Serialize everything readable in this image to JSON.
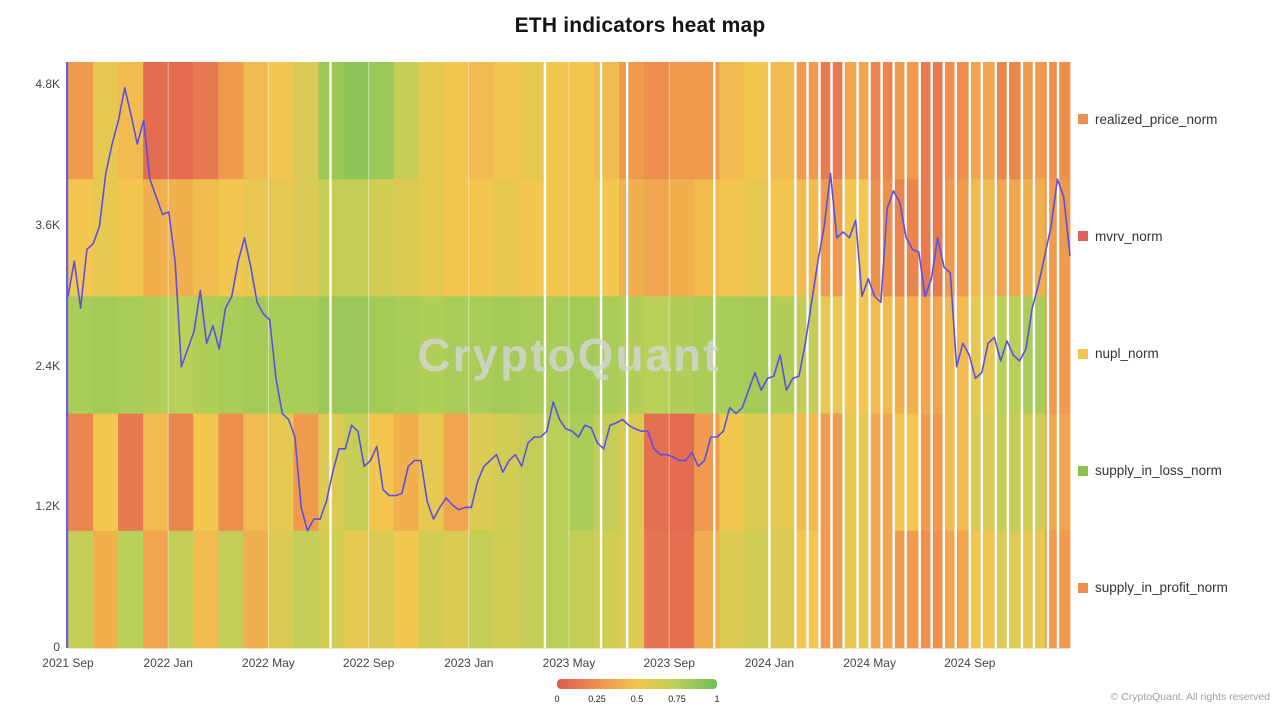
{
  "chart_data": {
    "type": "heatmap",
    "title": "ETH indicators heat map",
    "start_month": "2021-09",
    "end_month": "2024-12",
    "categories": [
      "2021-09",
      "2021-10",
      "2021-11",
      "2021-12",
      "2022-01",
      "2022-02",
      "2022-03",
      "2022-04",
      "2022-05",
      "2022-06",
      "2022-07",
      "2022-08",
      "2022-09",
      "2022-10",
      "2022-11",
      "2022-12",
      "2023-01",
      "2023-02",
      "2023-03",
      "2023-04",
      "2023-05",
      "2023-06",
      "2023-07",
      "2023-08",
      "2023-09",
      "2023-10",
      "2023-11",
      "2023-12",
      "2024-01",
      "2024-02",
      "2024-03",
      "2024-04",
      "2024-05",
      "2024-06",
      "2024-07",
      "2024-08",
      "2024-09",
      "2024-10",
      "2024-11",
      "2024-12"
    ],
    "y_axis": {
      "tick_labels": [
        "0",
        "1.2K",
        "2.4K",
        "3.6K",
        "4.8K"
      ],
      "tick_values": [
        0,
        1.2,
        2.4,
        3.6,
        4.8
      ],
      "max": 5.0
    },
    "x_axis": {
      "tick_labels": [
        "2021 Sep",
        "2022 Jan",
        "2022 May",
        "2022 Sep",
        "2023 Jan",
        "2023 May",
        "2023 Sep",
        "2024 Jan",
        "2024 May",
        "2024 Sep"
      ],
      "tick_month_index": [
        0,
        4,
        8,
        12,
        16,
        20,
        24,
        28,
        32,
        36
      ]
    },
    "bands": [
      {
        "name": "realized_price_norm",
        "values": [
          0.3,
          0.55,
          0.45,
          0.08,
          0.08,
          0.15,
          0.3,
          0.45,
          0.5,
          0.6,
          0.85,
          0.9,
          0.85,
          0.7,
          0.55,
          0.5,
          0.45,
          0.5,
          0.55,
          0.5,
          0.5,
          0.45,
          0.3,
          0.25,
          0.3,
          0.3,
          0.45,
          0.5,
          0.45,
          0.3,
          0.15,
          0.35,
          0.2,
          0.3,
          0.15,
          0.25,
          0.35,
          0.2,
          0.3,
          0.25
        ]
      },
      {
        "name": "mvrv_norm",
        "values": [
          0.5,
          0.55,
          0.5,
          0.4,
          0.4,
          0.45,
          0.5,
          0.55,
          0.55,
          0.6,
          0.7,
          0.7,
          0.65,
          0.6,
          0.55,
          0.5,
          0.5,
          0.55,
          0.5,
          0.5,
          0.5,
          0.5,
          0.4,
          0.35,
          0.4,
          0.45,
          0.5,
          0.55,
          0.5,
          0.45,
          0.3,
          0.5,
          0.25,
          0.2,
          0.15,
          0.3,
          0.45,
          0.35,
          0.4,
          0.3
        ]
      },
      {
        "name": "nupl_norm",
        "values": [
          0.8,
          0.82,
          0.8,
          0.78,
          0.75,
          0.78,
          0.8,
          0.82,
          0.8,
          0.8,
          0.85,
          0.85,
          0.82,
          0.8,
          0.78,
          0.8,
          0.8,
          0.82,
          0.8,
          0.8,
          0.82,
          0.8,
          0.78,
          0.75,
          0.78,
          0.8,
          0.8,
          0.82,
          0.78,
          0.7,
          0.55,
          0.5,
          0.45,
          0.4,
          0.35,
          0.45,
          0.55,
          0.75,
          0.8,
          0.3
        ]
      },
      {
        "name": "supply_in_loss_norm",
        "values": [
          0.2,
          0.5,
          0.15,
          0.45,
          0.2,
          0.5,
          0.25,
          0.45,
          0.55,
          0.3,
          0.6,
          0.7,
          0.5,
          0.4,
          0.55,
          0.35,
          0.6,
          0.65,
          0.7,
          0.75,
          0.8,
          0.7,
          0.6,
          0.1,
          0.08,
          0.3,
          0.5,
          0.6,
          0.55,
          0.45,
          0.3,
          0.55,
          0.35,
          0.5,
          0.3,
          0.45,
          0.6,
          0.7,
          0.65,
          0.35
        ]
      },
      {
        "name": "supply_in_profit_norm",
        "values": [
          0.7,
          0.4,
          0.75,
          0.35,
          0.7,
          0.45,
          0.7,
          0.4,
          0.6,
          0.7,
          0.65,
          0.55,
          0.6,
          0.5,
          0.65,
          0.6,
          0.7,
          0.65,
          0.7,
          0.75,
          0.7,
          0.65,
          0.6,
          0.12,
          0.1,
          0.4,
          0.6,
          0.65,
          0.6,
          0.5,
          0.3,
          0.55,
          0.35,
          0.3,
          0.25,
          0.35,
          0.5,
          0.6,
          0.55,
          0.3
        ]
      }
    ],
    "price_line": {
      "color": "#5b50e4",
      "values": [
        3.0,
        3.3,
        2.9,
        3.4,
        3.45,
        3.6,
        4.05,
        4.3,
        4.5,
        4.78,
        4.55,
        4.3,
        4.5,
        4.0,
        3.85,
        3.7,
        3.72,
        3.3,
        2.4,
        2.55,
        2.7,
        3.05,
        2.6,
        2.75,
        2.55,
        2.9,
        3.0,
        3.3,
        3.5,
        3.25,
        2.95,
        2.85,
        2.8,
        2.3,
        2.0,
        1.95,
        1.8,
        1.2,
        1.0,
        1.1,
        1.1,
        1.25,
        1.5,
        1.7,
        1.7,
        1.9,
        1.85,
        1.55,
        1.6,
        1.72,
        1.35,
        1.3,
        1.3,
        1.32,
        1.55,
        1.6,
        1.6,
        1.25,
        1.1,
        1.2,
        1.28,
        1.22,
        1.18,
        1.2,
        1.2,
        1.42,
        1.55,
        1.6,
        1.65,
        1.5,
        1.6,
        1.65,
        1.55,
        1.75,
        1.8,
        1.8,
        1.85,
        2.1,
        1.95,
        1.87,
        1.85,
        1.8,
        1.9,
        1.88,
        1.75,
        1.7,
        1.9,
        1.92,
        1.95,
        1.9,
        1.87,
        1.85,
        1.85,
        1.7,
        1.65,
        1.65,
        1.63,
        1.6,
        1.6,
        1.67,
        1.55,
        1.6,
        1.8,
        1.8,
        1.85,
        2.05,
        2.0,
        2.05,
        2.2,
        2.35,
        2.2,
        2.3,
        2.32,
        2.5,
        2.2,
        2.3,
        2.32,
        2.6,
        2.95,
        3.3,
        3.6,
        4.05,
        3.5,
        3.55,
        3.5,
        3.65,
        3.0,
        3.15,
        3.0,
        2.95,
        3.75,
        3.9,
        3.8,
        3.5,
        3.4,
        3.38,
        3.0,
        3.15,
        3.5,
        3.25,
        3.2,
        2.4,
        2.6,
        2.5,
        2.3,
        2.35,
        2.6,
        2.65,
        2.45,
        2.62,
        2.5,
        2.45,
        2.55,
        2.9,
        3.1,
        3.35,
        3.6,
        4.0,
        3.85,
        3.35
      ]
    },
    "gaps": [
      0.262,
      0.476,
      0.532,
      0.558,
      0.645,
      0.7,
      0.726,
      0.738,
      0.75,
      0.762,
      0.774,
      0.788,
      0.8,
      0.812,
      0.824,
      0.836,
      0.85,
      0.862,
      0.874,
      0.886,
      0.9,
      0.912,
      0.926,
      0.938,
      0.952,
      0.964,
      0.978,
      0.988
    ],
    "colormap": [
      {
        "t": 0,
        "color": "#de5b53"
      },
      {
        "t": 0.25,
        "color": "#ee8f4d"
      },
      {
        "t": 0.5,
        "color": "#f2c64f"
      },
      {
        "t": 0.75,
        "color": "#b9d058"
      },
      {
        "t": 1,
        "color": "#6fbd59"
      }
    ],
    "scale_ticks": [
      "0",
      "0.25",
      "0.5",
      "0.75",
      "1"
    ]
  },
  "legend": {
    "items": [
      {
        "label": "realized_price_norm",
        "color": "#ef8f4d"
      },
      {
        "label": "mvrv_norm",
        "color": "#e0605c"
      },
      {
        "label": "nupl_norm",
        "color": "#f2c64f"
      },
      {
        "label": "supply_in_loss_norm",
        "color": "#8cc152"
      },
      {
        "label": "supply_in_profit_norm",
        "color": "#ef8f4d"
      }
    ]
  },
  "watermark": {
    "text": "CryptoQuant"
  },
  "footer": {
    "copyright": "© CryptoQuant. All rights reserved"
  }
}
